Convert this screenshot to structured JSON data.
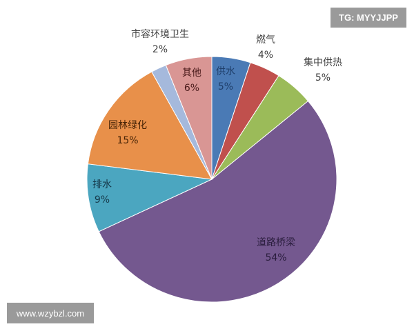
{
  "watermarks": {
    "top_right": "TG: MYYJJPP",
    "bottom_left": "www.wzybzl.com"
  },
  "chart_data": {
    "type": "pie",
    "start": "12 o'clock, clockwise",
    "slices": [
      {
        "label": "供水",
        "value": 5,
        "display": "5%",
        "color": "#4a7ab5",
        "label_color": "#1f3f6b"
      },
      {
        "label": "燃气",
        "value": 4,
        "display": "4%",
        "color": "#c0504d",
        "label_color": "#404040"
      },
      {
        "label": "集中供热",
        "value": 5,
        "display": "5%",
        "color": "#9bbb59",
        "label_color": "#404040"
      },
      {
        "label": "道路桥梁",
        "value": 54,
        "display": "54%",
        "color": "#74588f",
        "label_color": "#2a1d3d"
      },
      {
        "label": "排水",
        "value": 9,
        "display": "9%",
        "color": "#4ba6c0",
        "label_color": "#16394a"
      },
      {
        "label": "园林绿化",
        "value": 15,
        "display": "15%",
        "color": "#e8904a",
        "label_color": "#4a2608"
      },
      {
        "label": "市容环境卫生",
        "value": 2,
        "display": "2%",
        "color": "#a5b9dc",
        "label_color": "#404040"
      },
      {
        "label": "其他",
        "value": 6,
        "display": "6%",
        "color": "#d99694",
        "label_color": "#4a1a1a"
      }
    ]
  }
}
